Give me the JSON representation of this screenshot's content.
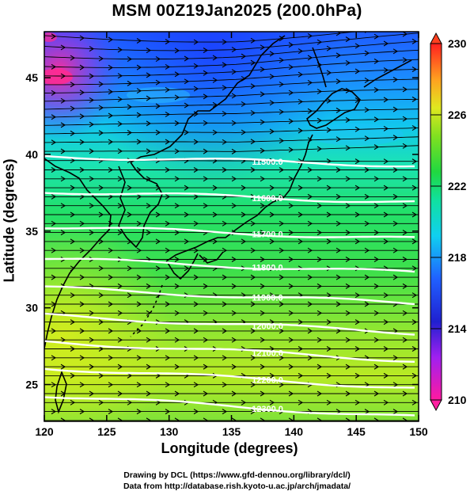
{
  "title": "MSM 00Z19Jan2025 (200.0hPa)",
  "x_axis": {
    "title": "Longitude (degrees)",
    "ticks": [
      "120",
      "125",
      "130",
      "135",
      "140",
      "145",
      "150"
    ]
  },
  "y_axis": {
    "title": "Latitude  (degrees)",
    "ticks": [
      "25",
      "30",
      "35",
      "40",
      "45"
    ]
  },
  "colorbar": {
    "ticks": [
      "210",
      "214",
      "218",
      "222",
      "226",
      "230"
    ]
  },
  "contour_labels": [
    "11500.0",
    "11600.0",
    "11700.0",
    "11800.0",
    "11900.0",
    "12000.0",
    "12100.0",
    "12200.0",
    "12300.0"
  ],
  "credit_line1": "Drawing by DCL (https://www.gfd-dennou.org/library/dcl/)",
  "credit_line2": "Data from http://database.rish.kyoto-u.ac.jp/arch/jmadata/",
  "colors": {
    "magenta": "#ff2aa6",
    "blue": "#1a3cff",
    "cyan": "#00e0f0",
    "green": "#2ee060",
    "yellowgreen": "#c8ec20",
    "red": "#ff3a1a"
  }
}
